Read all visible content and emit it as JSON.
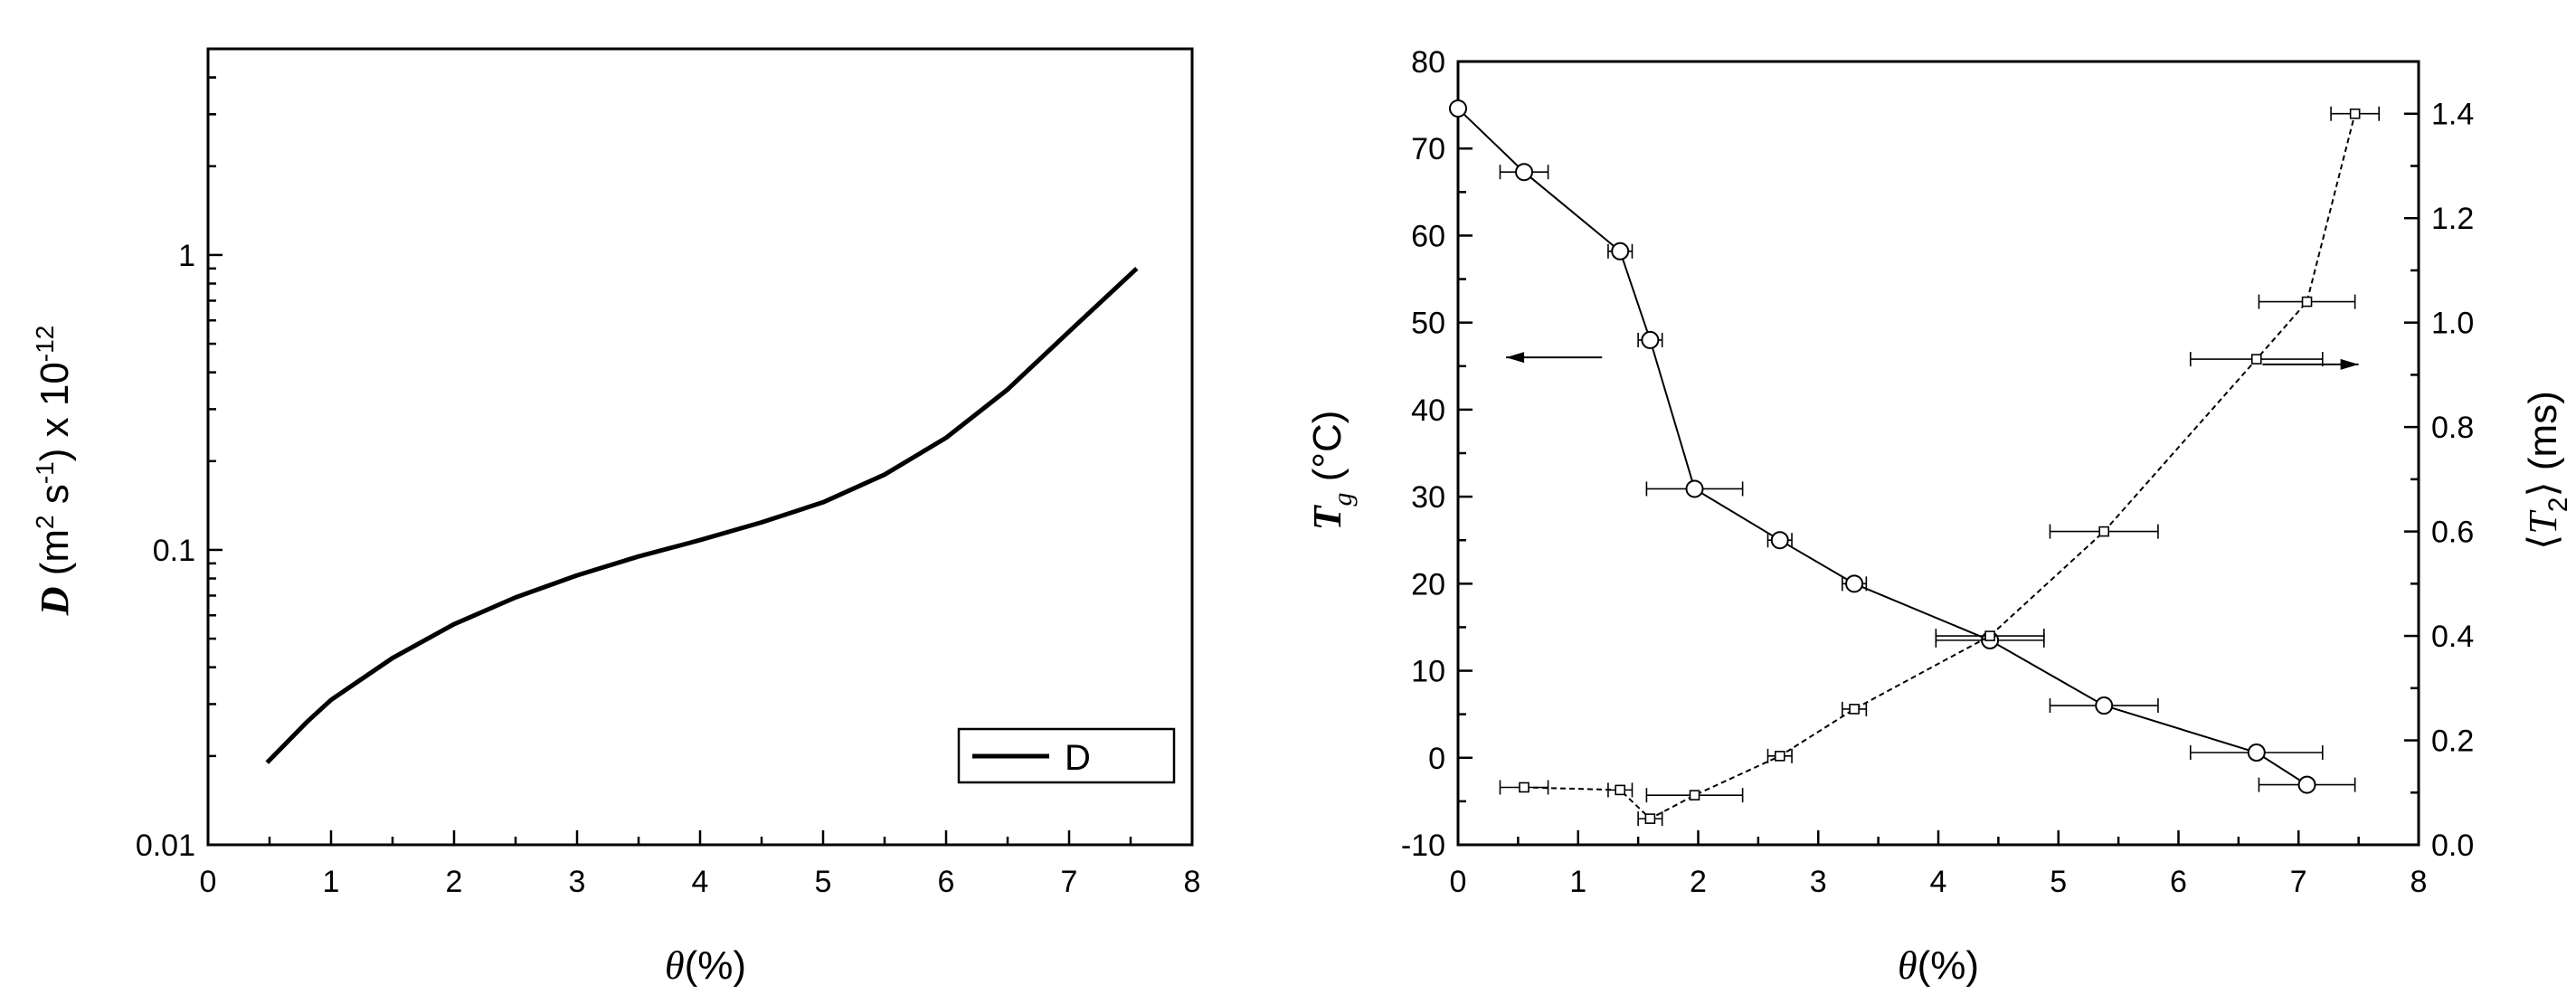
{
  "chart_data": [
    {
      "type": "line",
      "xlabel": "θ(%)",
      "ylabel": "D (m2 s-1) x 10-12",
      "ylabel_parts": {
        "symbol": "D",
        "unit_open": " (m",
        "sup1": "2",
        "mid": " s",
        "sup2": "-1",
        "close": ") x 10",
        "sup3": "-12"
      },
      "xlabel_parts": {
        "symbol": "θ",
        "unit": "(%)"
      },
      "xlim": [
        0,
        8
      ],
      "ylim": [
        0.01,
        5
      ],
      "yscale": "log",
      "xticks": [
        "0",
        "1",
        "2",
        "3",
        "4",
        "5",
        "6",
        "7",
        "8"
      ],
      "yticks": [
        {
          "value": 0.01,
          "label": "0.01"
        },
        {
          "value": 0.1,
          "label": "0.1"
        },
        {
          "value": 1,
          "label": "1"
        }
      ],
      "legend": {
        "position": "lower-right",
        "entries": [
          "D"
        ]
      },
      "grid": false,
      "series": [
        {
          "name": "D",
          "x": [
            0.48,
            0.8,
            1.0,
            1.5,
            2.0,
            2.5,
            3.0,
            3.5,
            4.0,
            4.5,
            5.0,
            5.5,
            6.0,
            6.5,
            7.0,
            7.55
          ],
          "y": [
            0.019,
            0.026,
            0.031,
            0.043,
            0.056,
            0.069,
            0.082,
            0.095,
            0.108,
            0.124,
            0.145,
            0.18,
            0.24,
            0.35,
            0.55,
            0.9
          ]
        }
      ]
    },
    {
      "type": "scatter",
      "xlabel": "θ(%)",
      "xlabel_parts": {
        "symbol": "θ",
        "unit": "(%)"
      },
      "ylabel": "Tg (°C)",
      "ylabel_parts": {
        "symbol": "T",
        "sub": "g",
        "unit": " (°C)"
      },
      "y2label": "⟨T2⟩ (ms)",
      "y2label_parts": {
        "open": "⟨",
        "symbol": "T",
        "sub": "2",
        "close": "⟩",
        "unit": " (ms)"
      },
      "xlim": [
        0,
        8
      ],
      "ylim": [
        -10,
        80
      ],
      "y2lim": [
        0,
        1.5
      ],
      "xticks": [
        "0",
        "1",
        "2",
        "3",
        "4",
        "5",
        "6",
        "7",
        "8"
      ],
      "yticks": [
        "-10",
        "0",
        "10",
        "20",
        "30",
        "40",
        "50",
        "60",
        "70",
        "80"
      ],
      "y2ticks": [
        "0.0",
        "0.2",
        "0.4",
        "0.6",
        "0.8",
        "1.0",
        "1.2",
        "1.4"
      ],
      "grid": false,
      "annotations": [
        {
          "type": "arrow",
          "direction": "left",
          "points_to": "left axis",
          "from": [
            1.2,
            46
          ],
          "to": [
            0.4,
            46
          ]
        },
        {
          "type": "arrow",
          "direction": "right",
          "points_to": "right axis",
          "from": [
            6.7,
            0.92
          ],
          "to": [
            7.5,
            0.92
          ]
        }
      ],
      "series": [
        {
          "marker": "circle",
          "line": "solid",
          "axis": "left",
          "x": [
            0.0,
            0.55,
            1.35,
            1.6,
            1.97,
            2.68,
            3.3,
            4.43,
            5.38,
            6.65,
            7.07
          ],
          "y": [
            74.6,
            67.3,
            58.2,
            48.0,
            30.9,
            25.0,
            20.0,
            13.5,
            6.0,
            0.6,
            -3.1
          ],
          "xerr": [
            0.0,
            0.2,
            0.1,
            0.1,
            0.4,
            0.1,
            0.1,
            0.45,
            0.45,
            0.55,
            0.4
          ]
        },
        {
          "marker": "square",
          "line": "dashed",
          "axis": "right",
          "x": [
            0.55,
            1.35,
            1.6,
            1.97,
            2.68,
            3.3,
            4.43,
            5.38,
            6.65,
            7.07,
            7.47
          ],
          "y": [
            0.11,
            0.105,
            0.05,
            0.095,
            0.17,
            0.26,
            0.4,
            0.6,
            0.93,
            1.04,
            1.4
          ],
          "xerr": [
            0.2,
            0.1,
            0.1,
            0.4,
            0.1,
            0.1,
            0.45,
            0.45,
            0.55,
            0.4,
            0.2
          ]
        }
      ]
    }
  ]
}
